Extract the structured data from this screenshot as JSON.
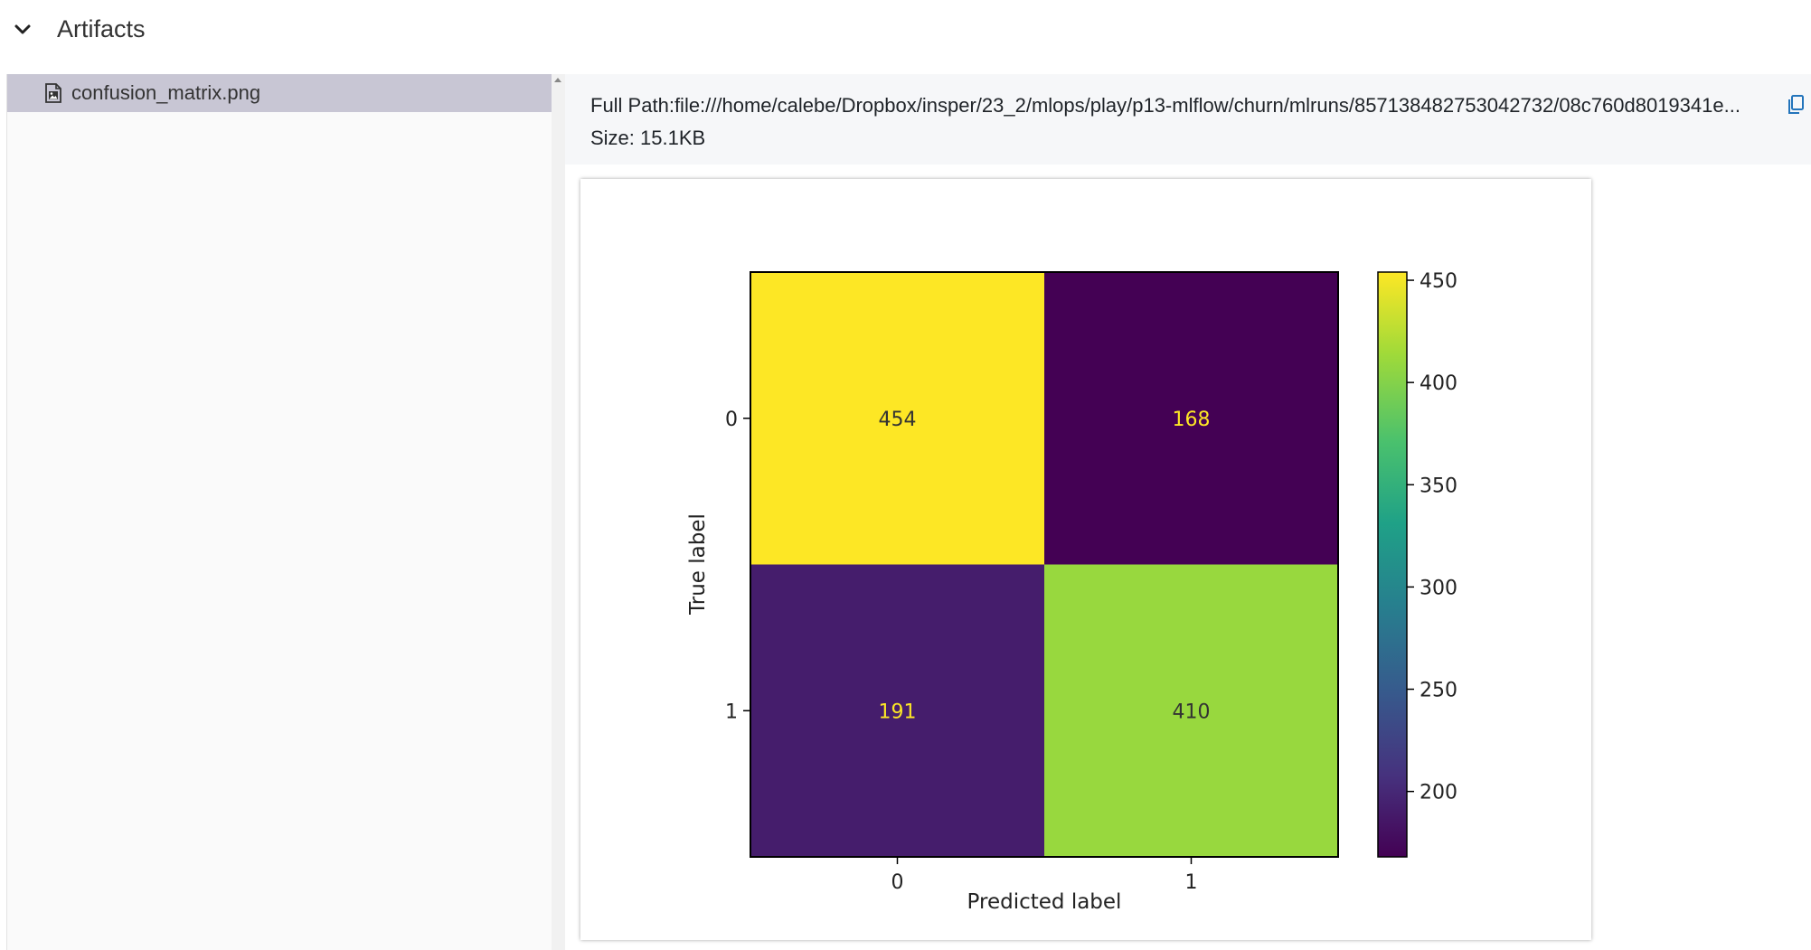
{
  "section": {
    "title": "Artifacts"
  },
  "tree": {
    "items": [
      {
        "label": "confusion_matrix.png",
        "selected": true
      }
    ]
  },
  "details": {
    "full_path_label": "Full Path:",
    "full_path": "file:///home/calebe/Dropbox/insper/23_2/mlops/play/p13-mlflow/churn/mlruns/857138482753042732/08c760d8019341e...",
    "size_label": "Size:",
    "size_value": "15.1KB"
  },
  "chart_data": {
    "type": "heatmap",
    "x_categories": [
      "0",
      "1"
    ],
    "y_categories": [
      "0",
      "1"
    ],
    "values": [
      [
        454,
        168
      ],
      [
        191,
        410
      ]
    ],
    "xlabel": "Predicted label",
    "ylabel": "True label",
    "colorbar": {
      "range": [
        168,
        454
      ],
      "ticks": [
        200,
        250,
        300,
        350,
        400,
        450
      ],
      "colormap": "viridis"
    }
  },
  "colors": {
    "selected_row": "#c8c6d4",
    "accent": "#2374bb"
  }
}
